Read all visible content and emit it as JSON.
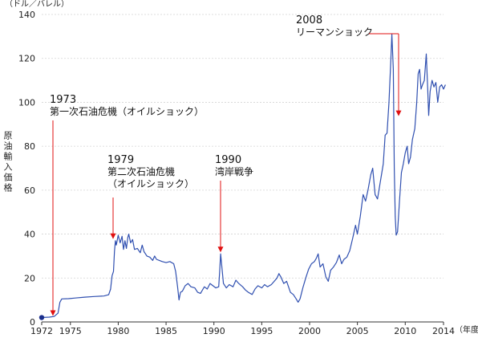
{
  "chart_data": {
    "type": "line",
    "y_unit": "（ドル／バレル）",
    "ylabel": "原油輸入価格",
    "x_unit": "（年度）",
    "xlim": [
      1972,
      2014
    ],
    "ylim": [
      0,
      140
    ],
    "y_ticks": [
      0,
      20,
      40,
      60,
      80,
      100,
      120,
      140
    ],
    "x_ticks": [
      1972,
      1975,
      1980,
      1985,
      1990,
      1995,
      2000,
      2005,
      2010,
      2014
    ],
    "x_tick_labels": [
      "1972",
      "1975",
      "1980",
      "1985",
      "1990",
      "1995",
      "2000",
      "2005",
      "2010",
      "2014"
    ],
    "grid": true,
    "series_color": "#2f4fb0",
    "annotation_color": "#e01010",
    "start_marker": {
      "x": 1972,
      "y": 2
    },
    "annotations": [
      {
        "id": "1973",
        "line1": "1973",
        "line2": "第一次石油危機（オイルショック）",
        "line3": "",
        "x": 1973.1,
        "y": 2
      },
      {
        "id": "1979",
        "line1": "1979",
        "line2": "第二次石油危機",
        "line3": "（オイルショック）",
        "x": 1979.4,
        "y": 37
      },
      {
        "id": "1990",
        "line1": "1990",
        "line2": "湾岸戦争",
        "line3": "",
        "x": 1990.7,
        "y": 31
      },
      {
        "id": "2008",
        "line1": "2008",
        "line2": "リーマンショック",
        "line3": "",
        "x": 2008.9,
        "y": 93
      }
    ],
    "series": [
      {
        "points": [
          [
            1972.0,
            2.0
          ],
          [
            1972.8,
            2.2
          ],
          [
            1973.3,
            2.5
          ],
          [
            1973.7,
            4.0
          ],
          [
            1973.9,
            9.0
          ],
          [
            1974.1,
            10.5
          ],
          [
            1974.8,
            10.6
          ],
          [
            1975.5,
            10.9
          ],
          [
            1976.5,
            11.3
          ],
          [
            1977.5,
            11.6
          ],
          [
            1978.5,
            11.8
          ],
          [
            1979.0,
            12.4
          ],
          [
            1979.2,
            15.0
          ],
          [
            1979.35,
            21.0
          ],
          [
            1979.5,
            23.0
          ],
          [
            1979.6,
            32.0
          ],
          [
            1979.7,
            37.0
          ],
          [
            1979.8,
            35.0
          ],
          [
            1980.0,
            39.5
          ],
          [
            1980.2,
            36.0
          ],
          [
            1980.4,
            39.0
          ],
          [
            1980.55,
            33.0
          ],
          [
            1980.7,
            37.0
          ],
          [
            1980.85,
            33.5
          ],
          [
            1981.0,
            38.5
          ],
          [
            1981.1,
            40.0
          ],
          [
            1981.3,
            36.0
          ],
          [
            1981.5,
            37.5
          ],
          [
            1981.7,
            33.0
          ],
          [
            1982.0,
            33.5
          ],
          [
            1982.3,
            31.5
          ],
          [
            1982.5,
            35.0
          ],
          [
            1982.7,
            32.0
          ],
          [
            1983.0,
            30.0
          ],
          [
            1983.3,
            29.5
          ],
          [
            1983.6,
            28.0
          ],
          [
            1983.8,
            30.0
          ],
          [
            1984.0,
            28.5
          ],
          [
            1984.3,
            28.0
          ],
          [
            1984.6,
            27.5
          ],
          [
            1985.0,
            27.0
          ],
          [
            1985.4,
            27.5
          ],
          [
            1985.8,
            26.5
          ],
          [
            1986.0,
            23.0
          ],
          [
            1986.2,
            16.0
          ],
          [
            1986.35,
            10.0
          ],
          [
            1986.5,
            13.5
          ],
          [
            1986.7,
            14.0
          ],
          [
            1987.0,
            16.5
          ],
          [
            1987.3,
            17.5
          ],
          [
            1987.6,
            16.0
          ],
          [
            1988.0,
            15.5
          ],
          [
            1988.3,
            13.5
          ],
          [
            1988.6,
            13.0
          ],
          [
            1989.0,
            16.0
          ],
          [
            1989.3,
            15.0
          ],
          [
            1989.6,
            17.5
          ],
          [
            1989.9,
            16.5
          ],
          [
            1990.2,
            15.5
          ],
          [
            1990.5,
            16.0
          ],
          [
            1990.6,
            23.0
          ],
          [
            1990.7,
            31.0
          ],
          [
            1990.85,
            24.0
          ],
          [
            1991.0,
            17.5
          ],
          [
            1991.3,
            15.5
          ],
          [
            1991.6,
            17.0
          ],
          [
            1992.0,
            16.0
          ],
          [
            1992.3,
            19.0
          ],
          [
            1992.6,
            17.5
          ],
          [
            1993.0,
            16.0
          ],
          [
            1993.3,
            14.5
          ],
          [
            1993.6,
            13.5
          ],
          [
            1994.0,
            12.5
          ],
          [
            1994.3,
            15.0
          ],
          [
            1994.6,
            16.5
          ],
          [
            1995.0,
            15.5
          ],
          [
            1995.3,
            17.0
          ],
          [
            1995.6,
            16.0
          ],
          [
            1996.0,
            17.0
          ],
          [
            1996.3,
            18.5
          ],
          [
            1996.6,
            20.0
          ],
          [
            1996.8,
            22.0
          ],
          [
            1997.0,
            20.5
          ],
          [
            1997.3,
            17.5
          ],
          [
            1997.6,
            18.5
          ],
          [
            1998.0,
            13.5
          ],
          [
            1998.3,
            12.5
          ],
          [
            1998.6,
            10.5
          ],
          [
            1998.8,
            9.0
          ],
          [
            1999.0,
            10.5
          ],
          [
            1999.3,
            15.5
          ],
          [
            1999.6,
            20.0
          ],
          [
            1999.9,
            24.0
          ],
          [
            2000.2,
            26.5
          ],
          [
            2000.5,
            27.5
          ],
          [
            2000.7,
            29.0
          ],
          [
            2000.9,
            31.0
          ],
          [
            2001.1,
            25.0
          ],
          [
            2001.4,
            26.5
          ],
          [
            2001.7,
            20.5
          ],
          [
            2001.95,
            18.5
          ],
          [
            2002.2,
            23.5
          ],
          [
            2002.5,
            25.0
          ],
          [
            2002.8,
            27.0
          ],
          [
            2003.1,
            30.5
          ],
          [
            2003.35,
            26.5
          ],
          [
            2003.6,
            28.5
          ],
          [
            2003.9,
            29.5
          ],
          [
            2004.2,
            32.5
          ],
          [
            2004.5,
            38.0
          ],
          [
            2004.8,
            44.0
          ],
          [
            2005.0,
            40.0
          ],
          [
            2005.3,
            48.0
          ],
          [
            2005.6,
            58.0
          ],
          [
            2005.85,
            55.0
          ],
          [
            2006.1,
            60.0
          ],
          [
            2006.4,
            67.0
          ],
          [
            2006.6,
            70.0
          ],
          [
            2006.85,
            58.0
          ],
          [
            2007.1,
            56.0
          ],
          [
            2007.4,
            64.0
          ],
          [
            2007.7,
            72.0
          ],
          [
            2007.9,
            85.0
          ],
          [
            2008.1,
            86.0
          ],
          [
            2008.3,
            100.0
          ],
          [
            2008.5,
            120.0
          ],
          [
            2008.6,
            131.0
          ],
          [
            2008.75,
            115.0
          ],
          [
            2008.85,
            70.0
          ],
          [
            2008.95,
            48.0
          ],
          [
            2009.05,
            39.5
          ],
          [
            2009.2,
            41.0
          ],
          [
            2009.4,
            55.0
          ],
          [
            2009.6,
            68.0
          ],
          [
            2009.8,
            72.0
          ],
          [
            2010.0,
            77.0
          ],
          [
            2010.2,
            80.0
          ],
          [
            2010.35,
            72.0
          ],
          [
            2010.55,
            75.0
          ],
          [
            2010.75,
            83.0
          ],
          [
            2011.0,
            88.0
          ],
          [
            2011.2,
            100.0
          ],
          [
            2011.35,
            113.0
          ],
          [
            2011.5,
            115.0
          ],
          [
            2011.65,
            106.0
          ],
          [
            2011.8,
            108.0
          ],
          [
            2012.0,
            110.0
          ],
          [
            2012.2,
            122.0
          ],
          [
            2012.35,
            106.0
          ],
          [
            2012.45,
            94.0
          ],
          [
            2012.6,
            105.0
          ],
          [
            2012.8,
            110.0
          ],
          [
            2013.0,
            107.0
          ],
          [
            2013.2,
            109.0
          ],
          [
            2013.4,
            100.0
          ],
          [
            2013.6,
            107.0
          ],
          [
            2013.8,
            108.0
          ],
          [
            2014.0,
            106.0
          ],
          [
            2014.2,
            108.0
          ]
        ]
      }
    ]
  }
}
